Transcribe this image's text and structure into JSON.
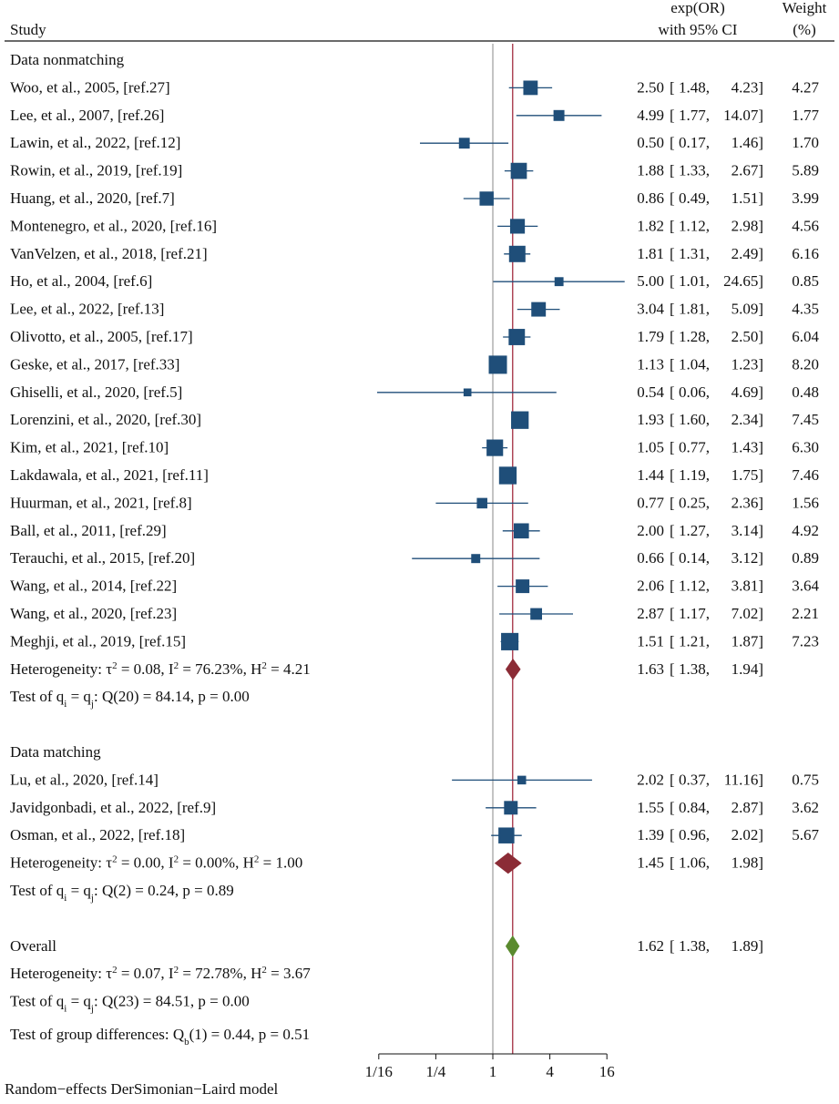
{
  "chart_data": {
    "type": "forest",
    "header": {
      "study": "Study",
      "effect_line1": "exp(OR)",
      "effect_line2": "with 95% CI",
      "weight_line1": "Weight",
      "weight_line2": "(%)"
    },
    "colors": {
      "square": "#1f4e79",
      "ci_line": "#1f4e79",
      "subgroup_diamond": "#8b2c36",
      "overall_diamond": "#5a8a2e",
      "overall_line": "#9b1b30",
      "null_line": "#888888"
    },
    "x_axis": {
      "scale": "log2",
      "ticks": [
        0.0625,
        0.25,
        1,
        4,
        16
      ],
      "tick_labels": [
        "1/16",
        "1/4",
        "1",
        "4",
        "16"
      ],
      "range": [
        0.0625,
        16
      ]
    },
    "overall_effect": 1.62,
    "groups": [
      {
        "label": "Data nonmatching",
        "studies": [
          {
            "name": "Woo, et al., 2005, [ref.27]",
            "est": 2.5,
            "lo": 1.48,
            "hi": 4.23,
            "est_t": "2.50",
            "lo_t": "1.48,",
            "hi_t": "4.23]",
            "weight": "4.27"
          },
          {
            "name": "Lee, et al., 2007, [ref.26]",
            "est": 4.99,
            "lo": 1.77,
            "hi": 14.07,
            "est_t": "4.99",
            "lo_t": "1.77,",
            "hi_t": "14.07]",
            "weight": "1.77"
          },
          {
            "name": "Lawin, et al., 2022, [ref.12]",
            "est": 0.5,
            "lo": 0.17,
            "hi": 1.46,
            "est_t": "0.50",
            "lo_t": "0.17,",
            "hi_t": "1.46]",
            "weight": "1.70"
          },
          {
            "name": "Rowin, et al., 2019, [ref.19]",
            "est": 1.88,
            "lo": 1.33,
            "hi": 2.67,
            "est_t": "1.88",
            "lo_t": "1.33,",
            "hi_t": "2.67]",
            "weight": "5.89"
          },
          {
            "name": "Huang, et al., 2020, [ref.7]",
            "est": 0.86,
            "lo": 0.49,
            "hi": 1.51,
            "est_t": "0.86",
            "lo_t": "0.49,",
            "hi_t": "1.51]",
            "weight": "3.99"
          },
          {
            "name": "Montenegro, et al., 2020, [ref.16]",
            "est": 1.82,
            "lo": 1.12,
            "hi": 2.98,
            "est_t": "1.82",
            "lo_t": "1.12,",
            "hi_t": "2.98]",
            "weight": "4.56"
          },
          {
            "name": "VanVelzen, et al., 2018, [ref.21]",
            "est": 1.81,
            "lo": 1.31,
            "hi": 2.49,
            "est_t": "1.81",
            "lo_t": "1.31,",
            "hi_t": "2.49]",
            "weight": "6.16"
          },
          {
            "name": "Ho, et al., 2004, [ref.6]",
            "est": 5.0,
            "lo": 1.01,
            "hi": 24.65,
            "est_t": "5.00",
            "lo_t": "1.01,",
            "hi_t": "24.65]",
            "weight": "0.85"
          },
          {
            "name": "Lee, et al., 2022, [ref.13]",
            "est": 3.04,
            "lo": 1.81,
            "hi": 5.09,
            "est_t": "3.04",
            "lo_t": "1.81,",
            "hi_t": "5.09]",
            "weight": "4.35"
          },
          {
            "name": "Olivotto, et al., 2005, [ref.17]",
            "est": 1.79,
            "lo": 1.28,
            "hi": 2.5,
            "est_t": "1.79",
            "lo_t": "1.28,",
            "hi_t": "2.50]",
            "weight": "6.04"
          },
          {
            "name": "Geske, et al., 2017, [ref.33]",
            "est": 1.13,
            "lo": 1.04,
            "hi": 1.23,
            "est_t": "1.13",
            "lo_t": "1.04,",
            "hi_t": "1.23]",
            "weight": "8.20"
          },
          {
            "name": "Ghiselli, et al., 2020, [ref.5]",
            "est": 0.54,
            "lo": 0.06,
            "hi": 4.69,
            "est_t": "0.54",
            "lo_t": "0.06,",
            "hi_t": "4.69]",
            "weight": "0.48"
          },
          {
            "name": "Lorenzini, et al., 2020, [ref.30]",
            "est": 1.93,
            "lo": 1.6,
            "hi": 2.34,
            "est_t": "1.93",
            "lo_t": "1.60,",
            "hi_t": "2.34]",
            "weight": "7.45"
          },
          {
            "name": "Kim, et al., 2021, [ref.10]",
            "est": 1.05,
            "lo": 0.77,
            "hi": 1.43,
            "est_t": "1.05",
            "lo_t": "0.77,",
            "hi_t": "1.43]",
            "weight": "6.30"
          },
          {
            "name": "Lakdawala, et al., 2021, [ref.11]",
            "est": 1.44,
            "lo": 1.19,
            "hi": 1.75,
            "est_t": "1.44",
            "lo_t": "1.19,",
            "hi_t": "1.75]",
            "weight": "7.46"
          },
          {
            "name": "Huurman, et al., 2021, [ref.8]",
            "est": 0.77,
            "lo": 0.25,
            "hi": 2.36,
            "est_t": "0.77",
            "lo_t": "0.25,",
            "hi_t": "2.36]",
            "weight": "1.56"
          },
          {
            "name": "Ball, et al., 2011, [ref.29]",
            "est": 2.0,
            "lo": 1.27,
            "hi": 3.14,
            "est_t": "2.00",
            "lo_t": "1.27,",
            "hi_t": "3.14]",
            "weight": "4.92"
          },
          {
            "name": "Terauchi, et al., 2015, [ref.20]",
            "est": 0.66,
            "lo": 0.14,
            "hi": 3.12,
            "est_t": "0.66",
            "lo_t": "0.14,",
            "hi_t": "3.12]",
            "weight": "0.89"
          },
          {
            "name": "Wang, et al., 2014, [ref.22]",
            "est": 2.06,
            "lo": 1.12,
            "hi": 3.81,
            "est_t": "2.06",
            "lo_t": "1.12,",
            "hi_t": "3.81]",
            "weight": "3.64"
          },
          {
            "name": "Wang, et al., 2020, [ref.23]",
            "est": 2.87,
            "lo": 1.17,
            "hi": 7.02,
            "est_t": "2.87",
            "lo_t": "1.17,",
            "hi_t": "7.02]",
            "weight": "2.21"
          },
          {
            "name": "Meghji, et al., 2019, [ref.15]",
            "est": 1.51,
            "lo": 1.21,
            "hi": 1.87,
            "est_t": "1.51",
            "lo_t": "1.21,",
            "hi_t": "1.87]",
            "weight": "7.23"
          }
        ],
        "pooled": {
          "est": 1.63,
          "lo": 1.38,
          "hi": 1.94,
          "est_t": "1.63",
          "lo_t": "1.38,",
          "hi_t": "1.94]"
        },
        "heterogeneity": {
          "t2": "0.08",
          "I2": "76.23%",
          "H2": "4.21"
        },
        "test": {
          "df": "20",
          "Q": "84.14",
          "p": "0.00"
        }
      },
      {
        "label": "Data matching",
        "studies": [
          {
            "name": "Lu, et al., 2020, [ref.14]",
            "est": 2.02,
            "lo": 0.37,
            "hi": 11.16,
            "est_t": "2.02",
            "lo_t": "0.37,",
            "hi_t": "11.16]",
            "weight": "0.75"
          },
          {
            "name": "Javidgonbadi, et al., 2022, [ref.9]",
            "est": 1.55,
            "lo": 0.84,
            "hi": 2.87,
            "est_t": "1.55",
            "lo_t": "0.84,",
            "hi_t": "2.87]",
            "weight": "3.62"
          },
          {
            "name": "Osman, et al., 2022, [ref.18]",
            "est": 1.39,
            "lo": 0.96,
            "hi": 2.02,
            "est_t": "1.39",
            "lo_t": "0.96,",
            "hi_t": "2.02]",
            "weight": "5.67"
          }
        ],
        "pooled": {
          "est": 1.45,
          "lo": 1.06,
          "hi": 1.98,
          "est_t": "1.45",
          "lo_t": "1.06,",
          "hi_t": "1.98]"
        },
        "heterogeneity": {
          "t2": "0.00",
          "I2": "0.00%",
          "H2": "1.00"
        },
        "test": {
          "df": "2",
          "Q": "0.24",
          "p": "0.89"
        }
      }
    ],
    "overall": {
      "label": "Overall",
      "est": 1.62,
      "lo": 1.38,
      "hi": 1.89,
      "est_t": "1.62",
      "lo_t": "1.38,",
      "hi_t": "1.89]",
      "heterogeneity": {
        "t2": "0.07",
        "I2": "72.78%",
        "H2": "3.67"
      },
      "test": {
        "df": "23",
        "Q": "84.51",
        "p": "0.00"
      }
    },
    "group_difference": {
      "df": "1",
      "Q": "0.44",
      "p": "0.51"
    },
    "labels": {
      "heterogeneity_prefix": "Heterogeneity: ",
      "test_prefix": "Test of q",
      "group_diff_prefix": "Test of group differences: Q"
    },
    "footnote": "Random−effects DerSimonian−Laird model"
  }
}
